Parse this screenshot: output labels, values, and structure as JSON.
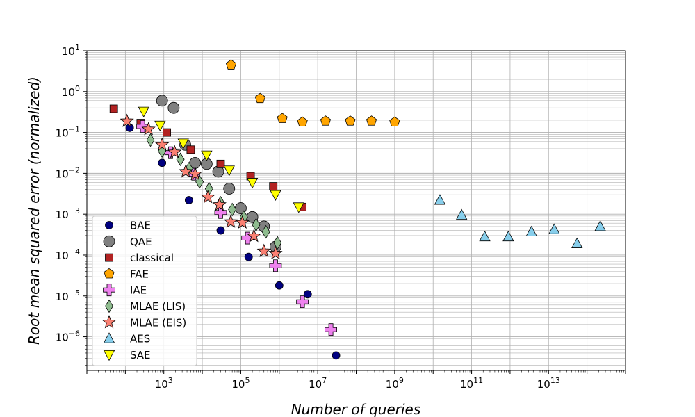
{
  "chart_data": {
    "type": "scatter",
    "title": "",
    "xlabel": "Number of queries",
    "ylabel": "Root mean squared error (normalized)",
    "xscale": "log",
    "yscale": "log",
    "xlim": [
      10,
      1000000000000000.0
    ],
    "ylim": [
      1.5e-07,
      10
    ],
    "grid": true,
    "legend_position": "lower-left",
    "x_ticks": [
      {
        "value": 1000,
        "base": "10",
        "exp": "3"
      },
      {
        "value": 100000,
        "base": "10",
        "exp": "5"
      },
      {
        "value": 10000000,
        "base": "10",
        "exp": "7"
      },
      {
        "value": 1000000000,
        "base": "10",
        "exp": "9"
      },
      {
        "value": 100000000000,
        "base": "10",
        "exp": "11"
      },
      {
        "value": 10000000000000,
        "base": "10",
        "exp": "13"
      }
    ],
    "y_ticks": [
      {
        "value": 1e-06,
        "base": "10",
        "exp": "−6"
      },
      {
        "value": 1e-05,
        "base": "10",
        "exp": "−5"
      },
      {
        "value": 0.0001,
        "base": "10",
        "exp": "−4"
      },
      {
        "value": 0.001,
        "base": "10",
        "exp": "−3"
      },
      {
        "value": 0.01,
        "base": "10",
        "exp": "−2"
      },
      {
        "value": 0.1,
        "base": "10",
        "exp": "−1"
      },
      {
        "value": 1,
        "base": "10",
        "exp": "0"
      },
      {
        "value": 10,
        "base": "10",
        "exp": "1"
      }
    ],
    "series": [
      {
        "name": "BAE",
        "marker": "circle",
        "color": "#000080",
        "points": [
          [
            130,
            0.13
          ],
          [
            900,
            0.018
          ],
          [
            4500,
            0.0022
          ],
          [
            30000,
            0.0004
          ],
          [
            160000,
            9e-05
          ],
          [
            1000000,
            1.8e-05
          ],
          [
            5500000,
            1.1e-05
          ],
          [
            30000000,
            3.5e-07
          ]
        ]
      },
      {
        "name": "QAE",
        "marker": "circle-large",
        "color": "#808080",
        "points": [
          [
            900,
            0.6
          ],
          [
            1800,
            0.4
          ],
          [
            3600,
            0.05
          ],
          [
            6500,
            0.018
          ],
          [
            13000,
            0.017
          ],
          [
            26000,
            0.011
          ],
          [
            50000,
            0.0042
          ],
          [
            100000,
            0.0014
          ],
          [
            200000,
            0.00085
          ],
          [
            400000,
            0.0005
          ],
          [
            800000,
            0.00016
          ]
        ]
      },
      {
        "name": "classical",
        "marker": "square",
        "color": "#b22222",
        "points": [
          [
            50,
            0.38
          ],
          [
            250,
            0.17
          ],
          [
            1200,
            0.1
          ],
          [
            5000,
            0.038
          ],
          [
            30000,
            0.017
          ],
          [
            180000,
            0.0085
          ],
          [
            700000,
            0.0048
          ],
          [
            4000000,
            0.0015
          ]
        ]
      },
      {
        "name": "FAE",
        "marker": "pentagon",
        "color": "#ffa500",
        "points": [
          [
            56000,
            4.5
          ],
          [
            320000,
            0.68
          ],
          [
            1200000,
            0.22
          ],
          [
            4000000,
            0.18
          ],
          [
            16000000,
            0.19
          ],
          [
            70000000,
            0.19
          ],
          [
            250000000,
            0.19
          ],
          [
            1000000000,
            0.18
          ]
        ]
      },
      {
        "name": "IAE",
        "marker": "plus",
        "color": "#ee82ee",
        "points": [
          [
            280,
            0.14
          ],
          [
            1500,
            0.032
          ],
          [
            6000,
            0.0095
          ],
          [
            30000,
            0.0011
          ],
          [
            150000,
            0.00026
          ],
          [
            800000,
            5.5e-05
          ],
          [
            4000000,
            7.2e-06
          ],
          [
            22000000,
            1.5e-06
          ]
        ]
      },
      {
        "name": "MLAE (LIS)",
        "marker": "diamond",
        "color": "#8fbc8f",
        "points": [
          [
            450,
            0.065
          ],
          [
            900,
            0.035
          ],
          [
            2700,
            0.022
          ],
          [
            4500,
            0.013
          ],
          [
            8500,
            0.0062
          ],
          [
            15000,
            0.0042
          ],
          [
            30000,
            0.0019
          ],
          [
            60000,
            0.0013
          ],
          [
            120000,
            0.00085
          ],
          [
            250000,
            0.00055
          ],
          [
            450000,
            0.00037
          ],
          [
            900000,
            0.0002
          ]
        ]
      },
      {
        "name": "MLAE (EIS)",
        "marker": "star",
        "color": "#fa8072",
        "points": [
          [
            110,
            0.19
          ],
          [
            400,
            0.12
          ],
          [
            900,
            0.05
          ],
          [
            1900,
            0.033
          ],
          [
            3700,
            0.011
          ],
          [
            6500,
            0.0095
          ],
          [
            14000,
            0.0026
          ],
          [
            28000,
            0.0017
          ],
          [
            55000,
            0.00065
          ],
          [
            110000,
            0.00062
          ],
          [
            220000,
            0.00029
          ],
          [
            400000,
            0.000125
          ],
          [
            800000,
            0.00011
          ]
        ]
      },
      {
        "name": "AES",
        "marker": "triangle-up",
        "color": "#87ceeb",
        "points": [
          [
            15000000000,
            0.0022
          ],
          [
            55000000000,
            0.00095
          ],
          [
            220000000000,
            0.00028
          ],
          [
            900000000000,
            0.00028
          ],
          [
            3600000000000,
            0.00037
          ],
          [
            14000000000000,
            0.00042
          ],
          [
            55000000000000,
            0.00019
          ],
          [
            220000000000000,
            0.0005
          ]
        ]
      },
      {
        "name": "SAE",
        "marker": "triangle-down",
        "color": "#ffff00",
        "points": [
          [
            300,
            0.33
          ],
          [
            800,
            0.15
          ],
          [
            3200,
            0.055
          ],
          [
            13000,
            0.028
          ],
          [
            50000,
            0.012
          ],
          [
            200000,
            0.006
          ],
          [
            800000,
            0.003
          ],
          [
            3200000,
            0.0015
          ]
        ]
      }
    ]
  }
}
